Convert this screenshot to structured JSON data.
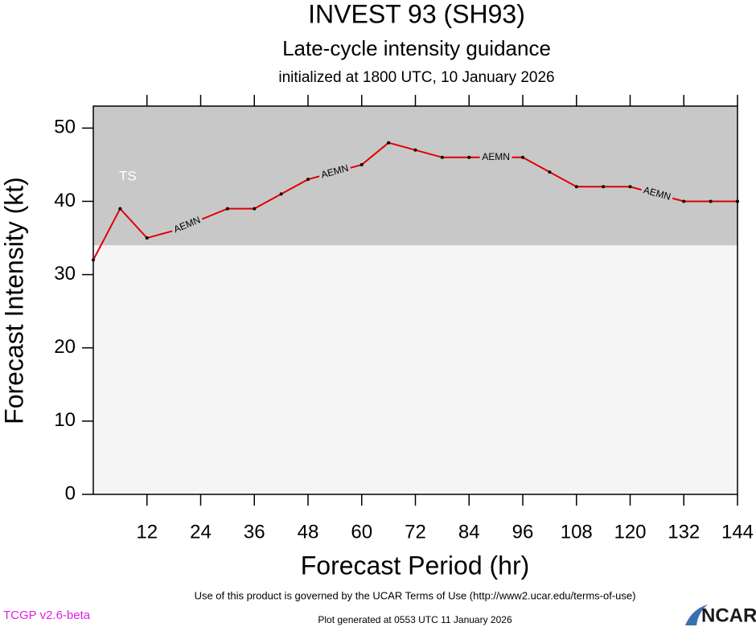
{
  "chart_data": {
    "type": "line",
    "title": "INVEST 93 (SH93)",
    "subtitle": "Late-cycle intensity guidance",
    "initialized": "initialized at 1800 UTC, 10 January 2026",
    "x_label": "Forecast Period (hr)",
    "y_label": "Forecast Intensity (kt)",
    "x": [
      0,
      6,
      12,
      18,
      24,
      30,
      36,
      42,
      48,
      54,
      60,
      66,
      72,
      78,
      84,
      90,
      96,
      102,
      108,
      114,
      120,
      126,
      132,
      138,
      144
    ],
    "series": [
      {
        "name": "AEMN",
        "color": "#e00000",
        "values": [
          32,
          39,
          35,
          36,
          37.5,
          39,
          39,
          41,
          43,
          44,
          45,
          48,
          47,
          46,
          46,
          46,
          46,
          44,
          42,
          42,
          42,
          41,
          40,
          40,
          40
        ],
        "label_at": [
          21,
          54,
          90,
          126
        ]
      }
    ],
    "xlim": [
      0,
      144
    ],
    "xticks": [
      12,
      24,
      36,
      48,
      60,
      72,
      84,
      96,
      108,
      120,
      132,
      144
    ],
    "ylim": [
      0,
      53
    ],
    "yticks": [
      0,
      10,
      20,
      30,
      40,
      50
    ],
    "bands": [
      {
        "label": "TS",
        "from": 34,
        "to": 53,
        "color": "#c8c8c8"
      }
    ],
    "footer": "Use of this product is governed by the UCAR Terms of Use (http://www2.ucar.edu/terms-of-use)",
    "version": "TCGP v2.6-beta",
    "generated": "Plot generated at 0553 UTC   11 January 2026",
    "logo": "NCAR"
  }
}
